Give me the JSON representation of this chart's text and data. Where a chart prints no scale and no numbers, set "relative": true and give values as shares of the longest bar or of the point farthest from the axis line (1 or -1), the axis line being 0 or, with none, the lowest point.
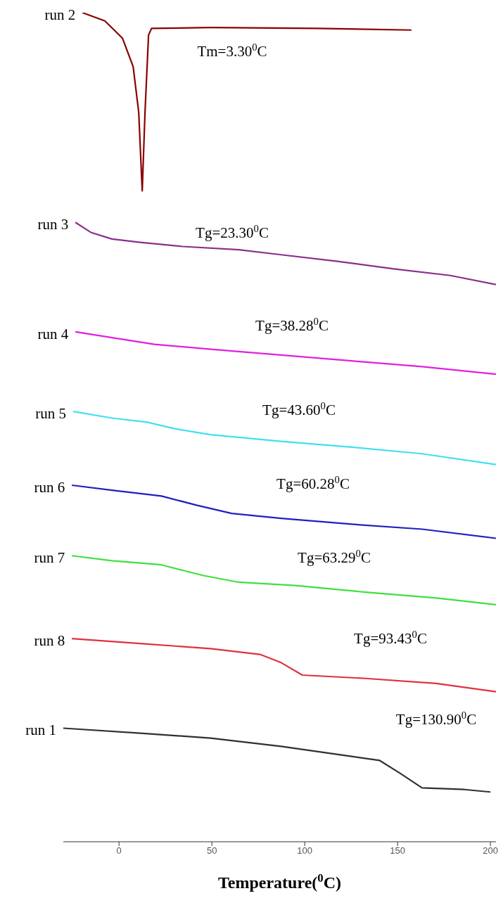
{
  "chart_data": {
    "type": "line",
    "relative": true,
    "xlabel": "Temperature($^{0}$C)",
    "xlim": [
      -30,
      203
    ],
    "xticks": [
      0,
      50,
      100,
      150,
      200
    ],
    "series": [
      {
        "name": "run 2",
        "color": "#8b0000",
        "x": [
          -19.7,
          -7.6,
          1.9,
          7.6,
          10.6,
          12.5,
          14.0,
          15.9,
          17.5,
          49.3,
          106.3,
          157.5
        ],
        "values": [
          1.0,
          0.99,
          0.969,
          0.935,
          0.88,
          0.785,
          0.88,
          0.973,
          0.981,
          0.982,
          0.981,
          0.979
        ]
      },
      {
        "name": "run 3",
        "color": "#8b2f8b",
        "x": [
          -23.5,
          -15.2,
          -3.8,
          11.4,
          34.2,
          64.5,
          87.3,
          117.6,
          148.0,
          178.4,
          203
        ],
        "values": [
          0.747,
          0.735,
          0.727,
          0.723,
          0.718,
          0.714,
          0.708,
          0.7,
          0.691,
          0.683,
          0.672
        ]
      },
      {
        "name": "run 4",
        "color": "#e020e0",
        "x": [
          -23.5,
          -3.8,
          19.0,
          49.3,
          87.3,
          125.2,
          163.2,
          203
        ],
        "values": [
          0.615,
          0.608,
          0.6,
          0.594,
          0.587,
          0.58,
          0.573,
          0.564
        ]
      },
      {
        "name": "run 5",
        "color": "#40e0f0",
        "x": [
          -24.7,
          -3.8,
          15.2,
          30.4,
          49.3,
          87.3,
          125.2,
          163.2,
          203
        ],
        "values": [
          0.519,
          0.511,
          0.506,
          0.498,
          0.491,
          0.483,
          0.476,
          0.468,
          0.455
        ]
      },
      {
        "name": "run 6",
        "color": "#2020c0",
        "x": [
          -25.4,
          -3.8,
          22.8,
          41.7,
          60.7,
          87.3,
          125.2,
          163.2,
          203
        ],
        "values": [
          0.43,
          0.424,
          0.417,
          0.406,
          0.396,
          0.39,
          0.383,
          0.377,
          0.366
        ]
      },
      {
        "name": "run 7",
        "color": "#40e040",
        "x": [
          -25.4,
          -3.8,
          22.8,
          45.5,
          64.5,
          94.9,
          132.8,
          170.8,
          203
        ],
        "values": [
          0.345,
          0.339,
          0.334,
          0.321,
          0.313,
          0.309,
          0.301,
          0.294,
          0.286
        ]
      },
      {
        "name": "run 8",
        "color": "#e03040",
        "x": [
          -25.4,
          11.4,
          49.3,
          75.9,
          87.3,
          98.7,
          132.8,
          170.8,
          203
        ],
        "values": [
          0.245,
          0.239,
          0.233,
          0.226,
          0.216,
          0.201,
          0.197,
          0.191,
          0.181
        ]
      },
      {
        "name": "run 1",
        "color": "#303030",
        "x": [
          -30,
          11.4,
          49.3,
          87.3,
          125.2,
          140.4,
          151.8,
          163.2,
          186.0,
          200
        ],
        "values": [
          0.137,
          0.131,
          0.125,
          0.115,
          0.103,
          0.098,
          0.082,
          0.065,
          0.063,
          0.06
        ]
      }
    ],
    "annotations": [
      "Tm=3.30$^{0}$C",
      "Tg=23.30$^{0}$C",
      "Tg=38.28$^{0}$C",
      "Tg=43.60$^{0}$C",
      "Tg=60.28$^{0}$C",
      "Tg=63.29$^{0}$C",
      "Tg=93.43$^{0}$C",
      "Tg=130.90$^{0}$C"
    ]
  }
}
